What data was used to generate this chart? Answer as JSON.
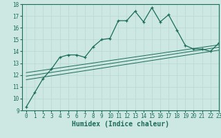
{
  "xlabel": "Humidex (Indice chaleur)",
  "ylabel": "",
  "bg_color": "#cde8e2",
  "line_color": "#1a6b5a",
  "xlim": [
    -0.5,
    23
  ],
  "ylim": [
    9,
    18
  ],
  "yticks": [
    9,
    10,
    11,
    12,
    13,
    14,
    15,
    16,
    17,
    18
  ],
  "xticks": [
    0,
    1,
    2,
    3,
    4,
    5,
    6,
    7,
    8,
    9,
    10,
    11,
    12,
    13,
    14,
    15,
    16,
    17,
    18,
    19,
    20,
    21,
    22,
    23
  ],
  "main_line_x": [
    0,
    1,
    2,
    3,
    4,
    5,
    6,
    7,
    8,
    9,
    10,
    11,
    12,
    13,
    14,
    15,
    16,
    17,
    18,
    19,
    20,
    21,
    22,
    23
  ],
  "main_line_y": [
    9.3,
    10.5,
    11.7,
    12.5,
    13.5,
    13.7,
    13.7,
    13.5,
    14.4,
    15.0,
    15.1,
    16.6,
    16.6,
    17.4,
    16.5,
    17.7,
    16.5,
    17.1,
    15.8,
    14.5,
    14.2,
    14.2,
    14.0,
    14.7
  ],
  "reg_line1_x": [
    0,
    23
  ],
  "reg_line1_y": [
    11.6,
    14.1
  ],
  "reg_line2_x": [
    0,
    23
  ],
  "reg_line2_y": [
    11.9,
    14.35
  ],
  "reg_line3_x": [
    0,
    23
  ],
  "reg_line3_y": [
    12.2,
    14.55
  ],
  "grid_color": "#b8d8d0",
  "tick_fontsize": 5.5,
  "label_fontsize": 7,
  "xlabel_fontweight": "bold"
}
